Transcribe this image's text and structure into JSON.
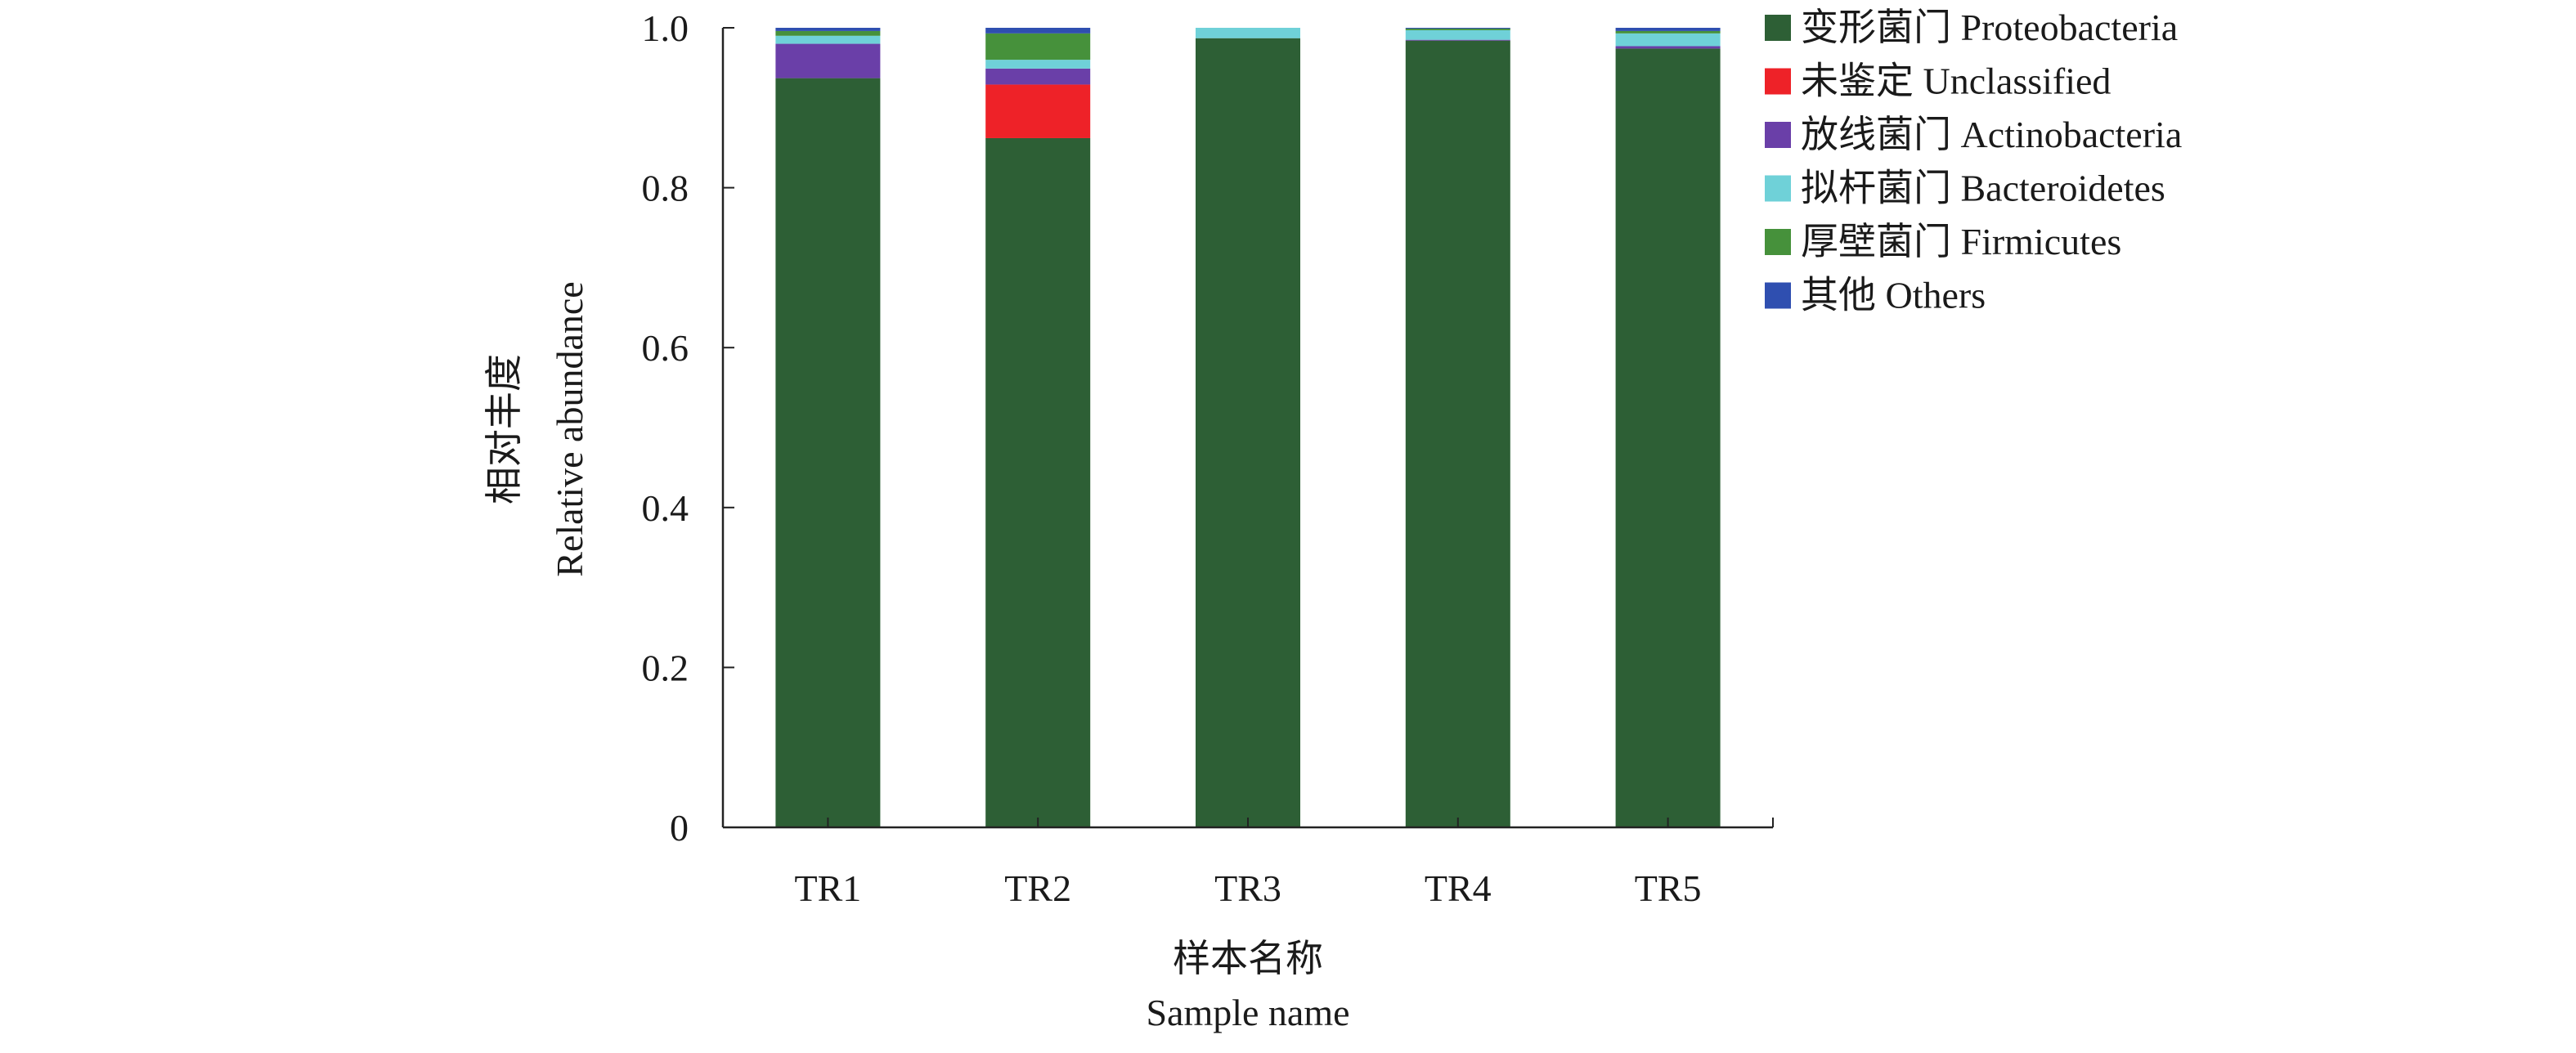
{
  "chart_data": {
    "type": "bar",
    "stacked": true,
    "categories": [
      "TR1",
      "TR2",
      "TR3",
      "TR4",
      "TR5"
    ],
    "series": [
      {
        "name": "变形菌门 Proteobacteria",
        "color": "#2d5f35",
        "values": [
          0.937,
          0.862,
          0.987,
          0.984,
          0.974
        ]
      },
      {
        "name": "未鉴定 Unclassified",
        "color": "#ee2228",
        "values": [
          0.0,
          0.067,
          0.0,
          0.0,
          0.0
        ]
      },
      {
        "name": "放线菌门 Actinobacteria",
        "color": "#6a3fa8",
        "values": [
          0.043,
          0.02,
          0.0,
          0.001,
          0.003
        ]
      },
      {
        "name": "拟杆菌门 Bacteroidetes",
        "color": "#6fd1d8",
        "values": [
          0.01,
          0.011,
          0.013,
          0.012,
          0.016
        ]
      },
      {
        "name": "厚壁菌门 Firmicutes",
        "color": "#46913b",
        "values": [
          0.006,
          0.033,
          0.0,
          0.002,
          0.003
        ]
      },
      {
        "name": "其他 Others",
        "color": "#2f4fb0",
        "values": [
          0.004,
          0.007,
          0.0,
          0.001,
          0.004
        ]
      }
    ],
    "xlabel_zh": "样本名称",
    "xlabel_en": "Sample name",
    "ylabel_zh": "相对丰度",
    "ylabel_en": "Relative abundance",
    "ylim": [
      0,
      1.0
    ],
    "yticks": [
      0,
      0.2,
      0.4,
      0.6,
      0.8,
      1.0
    ],
    "ytick_labels": [
      "0",
      "0.2",
      "0.4",
      "0.6",
      "0.8",
      "1.0"
    ],
    "grid": false,
    "legend_position": "top-right"
  }
}
